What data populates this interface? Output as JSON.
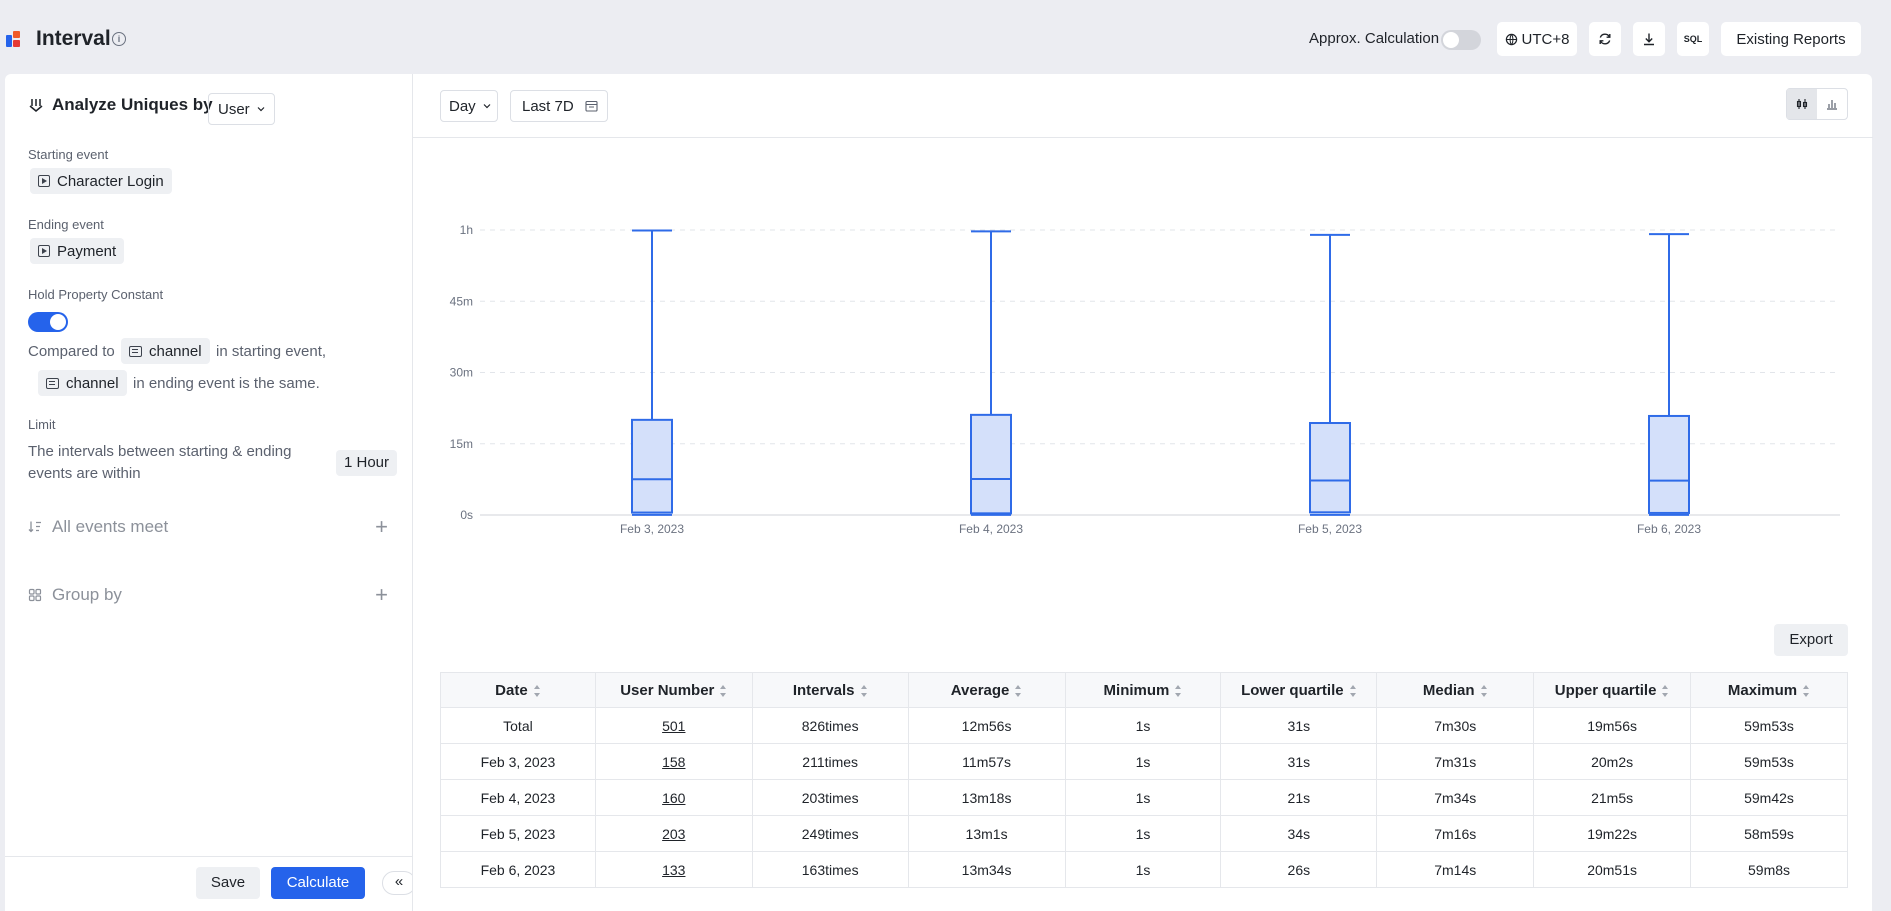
{
  "header": {
    "title": "Interval",
    "approx_label": "Approx. Calculation",
    "approx_enabled": false,
    "timezone": "UTC+8",
    "sql_label": "SQL",
    "existing_reports": "Existing Reports"
  },
  "sidebar": {
    "analyze_label": "Analyze Uniques by",
    "analyze_value": "User",
    "starting_event_label": "Starting event",
    "starting_event": "Character Login",
    "ending_event_label": "Ending event",
    "ending_event": "Payment",
    "hold_label": "Hold Property Constant",
    "hold_enabled": true,
    "compared_prefix": "Compared to",
    "start_property": "channel",
    "compared_mid": "in starting event,",
    "end_property": "channel",
    "compared_suffix": "in ending event is the same.",
    "limit_label": "Limit",
    "limit_text": "The intervals between starting & ending events are within",
    "limit_value": "1 Hour",
    "all_events_label": "All events meet",
    "group_by_label": "Group by",
    "save_label": "Save",
    "calculate_label": "Calculate",
    "collapse_label": "«"
  },
  "toolbar": {
    "granularity": "Day",
    "range": "Last 7D"
  },
  "chart_data": {
    "type": "boxplot",
    "categories": [
      "Feb 3, 2023",
      "Feb 4, 2023",
      "Feb 5, 2023",
      "Feb 6, 2023"
    ],
    "y_unit": "seconds",
    "y_ticks": [
      {
        "value": 0,
        "label": "0s"
      },
      {
        "value": 900,
        "label": "15m"
      },
      {
        "value": 1800,
        "label": "30m"
      },
      {
        "value": 2700,
        "label": "45m"
      },
      {
        "value": 3600,
        "label": "1h"
      }
    ],
    "ylim": [
      0,
      3600
    ],
    "grid": true,
    "series": [
      {
        "min": 1,
        "q1": 31,
        "median": 451,
        "q3": 1202,
        "max": 3593
      },
      {
        "min": 1,
        "q1": 21,
        "median": 454,
        "q3": 1265,
        "max": 3582
      },
      {
        "min": 1,
        "q1": 34,
        "median": 436,
        "q3": 1162,
        "max": 3539
      },
      {
        "min": 1,
        "q1": 26,
        "median": 434,
        "q3": 1251,
        "max": 3548
      }
    ],
    "colors": {
      "box_fill": "#d4e0fa",
      "stroke": "#2f6be8",
      "grid": "#e2e5ea",
      "axis_text": "#6b7280"
    }
  },
  "table": {
    "export_label": "Export",
    "headers": [
      "Date",
      "User Number",
      "Intervals",
      "Average",
      "Minimum",
      "Lower quartile",
      "Median",
      "Upper quartile",
      "Maximum"
    ],
    "rows": [
      [
        "Total",
        "501",
        "826times",
        "12m56s",
        "1s",
        "31s",
        "7m30s",
        "19m56s",
        "59m53s"
      ],
      [
        "Feb 3, 2023",
        "158",
        "211times",
        "11m57s",
        "1s",
        "31s",
        "7m31s",
        "20m2s",
        "59m53s"
      ],
      [
        "Feb 4, 2023",
        "160",
        "203times",
        "13m18s",
        "1s",
        "21s",
        "7m34s",
        "21m5s",
        "59m42s"
      ],
      [
        "Feb 5, 2023",
        "203",
        "249times",
        "13m1s",
        "1s",
        "34s",
        "7m16s",
        "19m22s",
        "58m59s"
      ],
      [
        "Feb 6, 2023",
        "133",
        "163times",
        "13m34s",
        "1s",
        "26s",
        "7m14s",
        "20m51s",
        "59m8s"
      ]
    ]
  }
}
